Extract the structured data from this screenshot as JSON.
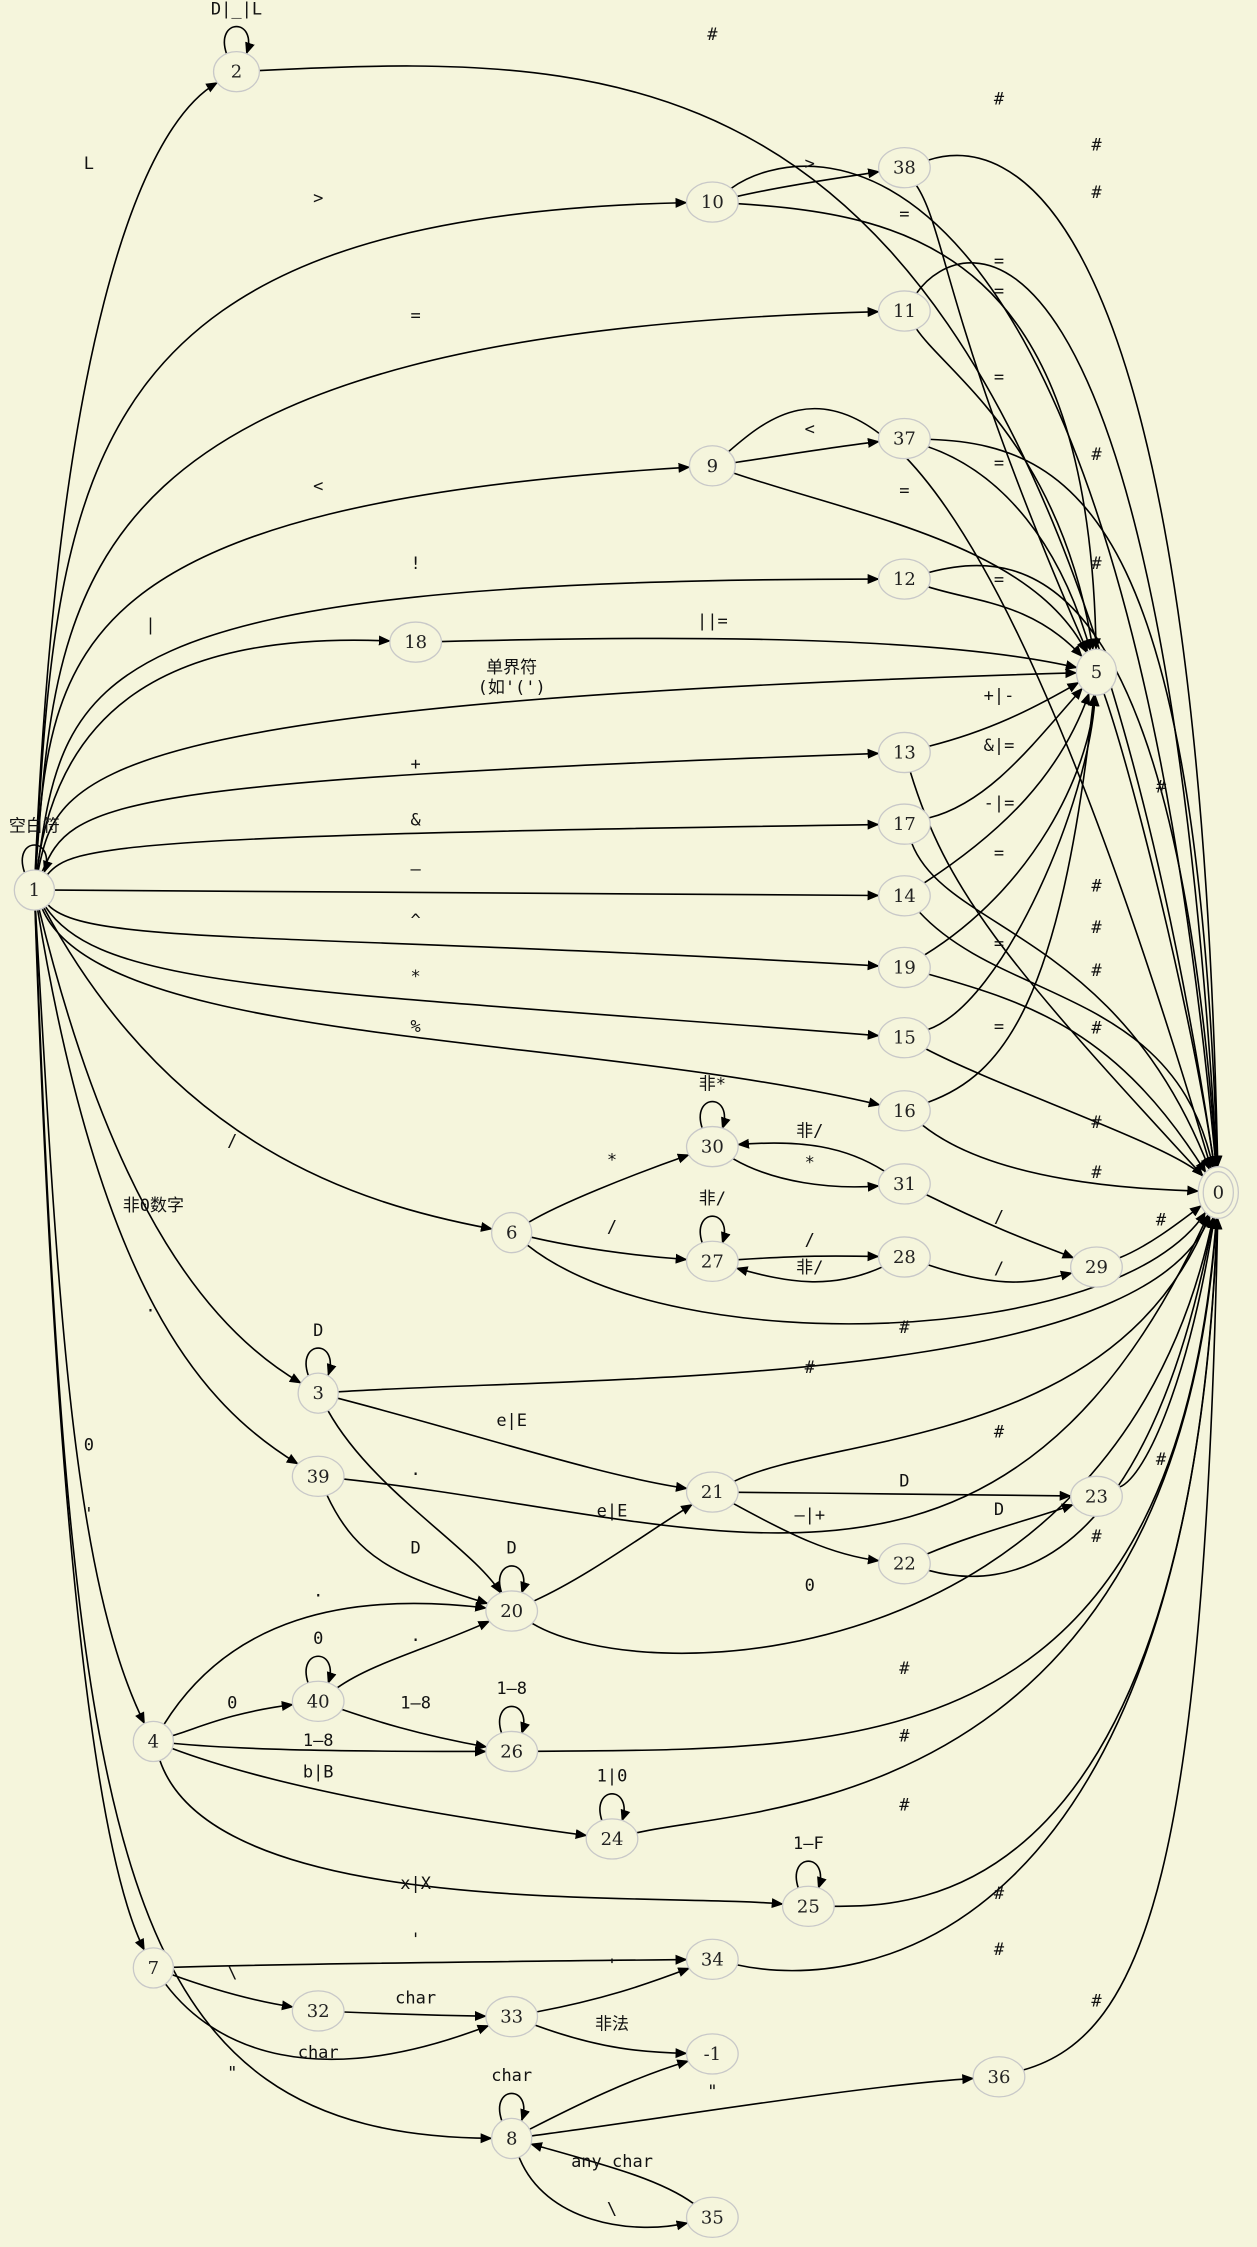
{
  "colors": {
    "background": "#f5f5dc",
    "edge": "#000000",
    "node_border": "#c8c8c8"
  },
  "nodes": [
    "1",
    "2",
    "10",
    "38",
    "11",
    "9",
    "37",
    "12",
    "18",
    "5",
    "13",
    "17",
    "14",
    "19",
    "15",
    "16",
    "0",
    "30",
    "31",
    "6",
    "27",
    "28",
    "29",
    "3",
    "39",
    "21",
    "23",
    "22",
    "20",
    "40",
    "26",
    "24",
    "25",
    "4",
    "7",
    "34",
    "32",
    "33",
    "-1",
    "36",
    "8",
    "35"
  ],
  "edge_labels": {
    "loop_2": "D|_|L",
    "e_1_2": "L",
    "e_2_0": "#",
    "e_1_10": ">",
    "e_10_38": ">",
    "e_10_0": "#",
    "e_38_0": "#",
    "e_10_5": "=",
    "e_38_5": "=",
    "e_1_11": "=",
    "e_11_0": "#",
    "e_11_5": "=",
    "e_1_9": "<",
    "e_9_37": "<",
    "e_9_0": "=",
    "e_9_5": "=",
    "e_37_0": "#",
    "e_37_5": "=",
    "e_1_12": "!",
    "e_12_0": "#",
    "e_12_5": "=",
    "e_1_18": "|",
    "e_18_5": "||=",
    "e_1_5_line1": "单界符",
    "e_1_5_line2": "(如'(')",
    "e_5_0": "#",
    "e_1_13": "+",
    "e_13_5": "+|-",
    "e_13_0": "#",
    "e_1_17": "&",
    "e_17_5": "&|=",
    "e_17_0": "#",
    "e_1_14": "–",
    "e_14_5": "-|=",
    "e_14_0": "#",
    "e_1_19": "^",
    "e_19_5": "=",
    "e_19_0": "#",
    "e_1_15": "*",
    "e_15_5": "=",
    "e_15_0": "#",
    "e_1_16": "%",
    "e_16_5": "=",
    "e_16_0": "#",
    "loop_1": "空白符",
    "e_1_6": "/",
    "e_6_30": "*",
    "loop_30": "非*",
    "e_30_31": "*",
    "e_31_30": "非/",
    "e_31_29": "/",
    "e_6_27": "/",
    "loop_27": "非/",
    "e_27_28": "/",
    "e_28_27": "非/",
    "e_28_29": "/",
    "e_29_0": "#",
    "e_6_0": "#",
    "e_1_3": "非0数字",
    "loop_3": "D",
    "e_3_0": "#",
    "e_3_21": "e|E",
    "e_3_20": ".",
    "e_1_39": ".",
    "e_39_20": "D",
    "e_39_0": "0",
    "e_21_0": "#",
    "e_21_23": "D",
    "e_21_22": "–|+",
    "e_22_23": "D",
    "e_23_0": "#",
    "e_22_0": "#",
    "loop_20": "D",
    "e_20_21": "e|E",
    "e_20_0": "#",
    "e_1_4": "0",
    "e_4_20": ".",
    "e_4_40": "0",
    "loop_40": "0",
    "e_40_20": ".",
    "e_40_26": "1–8",
    "e_4_26": "1–8",
    "loop_26": "1–8",
    "e_26_0": "#",
    "e_4_24": "b|B",
    "loop_24": "1|0",
    "e_24_0": "#",
    "e_4_25": "x|X",
    "loop_25": "1–F",
    "e_25_0": "#",
    "e_1_7": "'",
    "e_7_34": "'",
    "e_33_34": "'",
    "e_34_0": "#",
    "e_7_32": "\\",
    "e_32_33": "char",
    "e_7_33": "char",
    "e_33_m1": "非法",
    "e_1_8": "\"",
    "loop_8": "char",
    "e_8_m1": "",
    "e_8_36": "\"",
    "e_36_0": "#",
    "e_8_35": "\\",
    "e_35_8": "any char"
  }
}
